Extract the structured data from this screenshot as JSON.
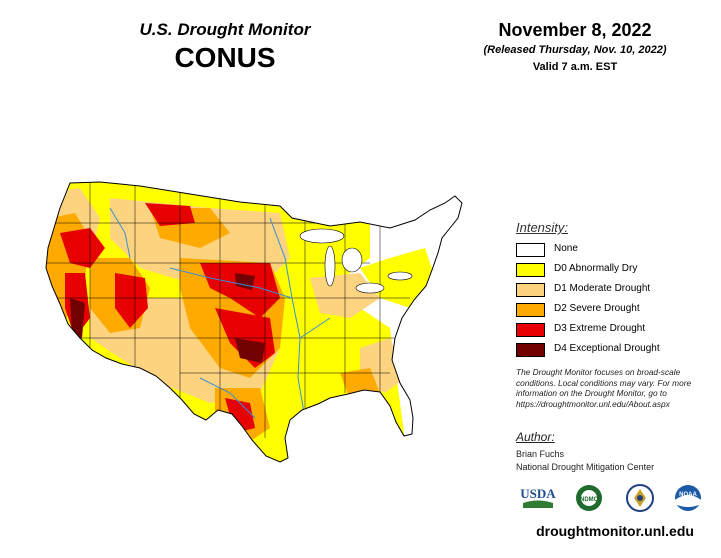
{
  "header": {
    "monitor_title": "U.S. Drought Monitor",
    "region": "CONUS",
    "date": "November 8, 2022",
    "released": "(Released Thursday, Nov. 10, 2022)",
    "valid": "Valid 7 a.m. EST"
  },
  "legend": {
    "title": "Intensity:",
    "items": [
      {
        "label": "None",
        "color": "#ffffff"
      },
      {
        "label": "D0 Abnormally Dry",
        "color": "#ffff00"
      },
      {
        "label": "D1 Moderate Drought",
        "color": "#fcd37f"
      },
      {
        "label": "D2 Severe Drought",
        "color": "#ffaa00"
      },
      {
        "label": "D3 Extreme Drought",
        "color": "#e60000"
      },
      {
        "label": "D4 Exceptional Drought",
        "color": "#730000"
      }
    ]
  },
  "note": "The Drought Monitor focuses on broad-scale conditions. Local conditions may vary. For more information on the Drought Monitor, go to https://droughtmonitor.unl.edu/About.aspx",
  "author": {
    "label": "Author:",
    "name": "Brian Fuchs",
    "organization": "National Drought Mitigation Center"
  },
  "logos": [
    {
      "text": "USDA",
      "icon": "usda-logo"
    },
    {
      "text": "NDMC",
      "icon": "ndmc-logo"
    },
    {
      "text": "",
      "icon": "doc-seal-logo"
    },
    {
      "text": "NOAA",
      "icon": "noaa-logo"
    }
  ],
  "footer": {
    "url": "droughtmonitor.unl.edu"
  }
}
